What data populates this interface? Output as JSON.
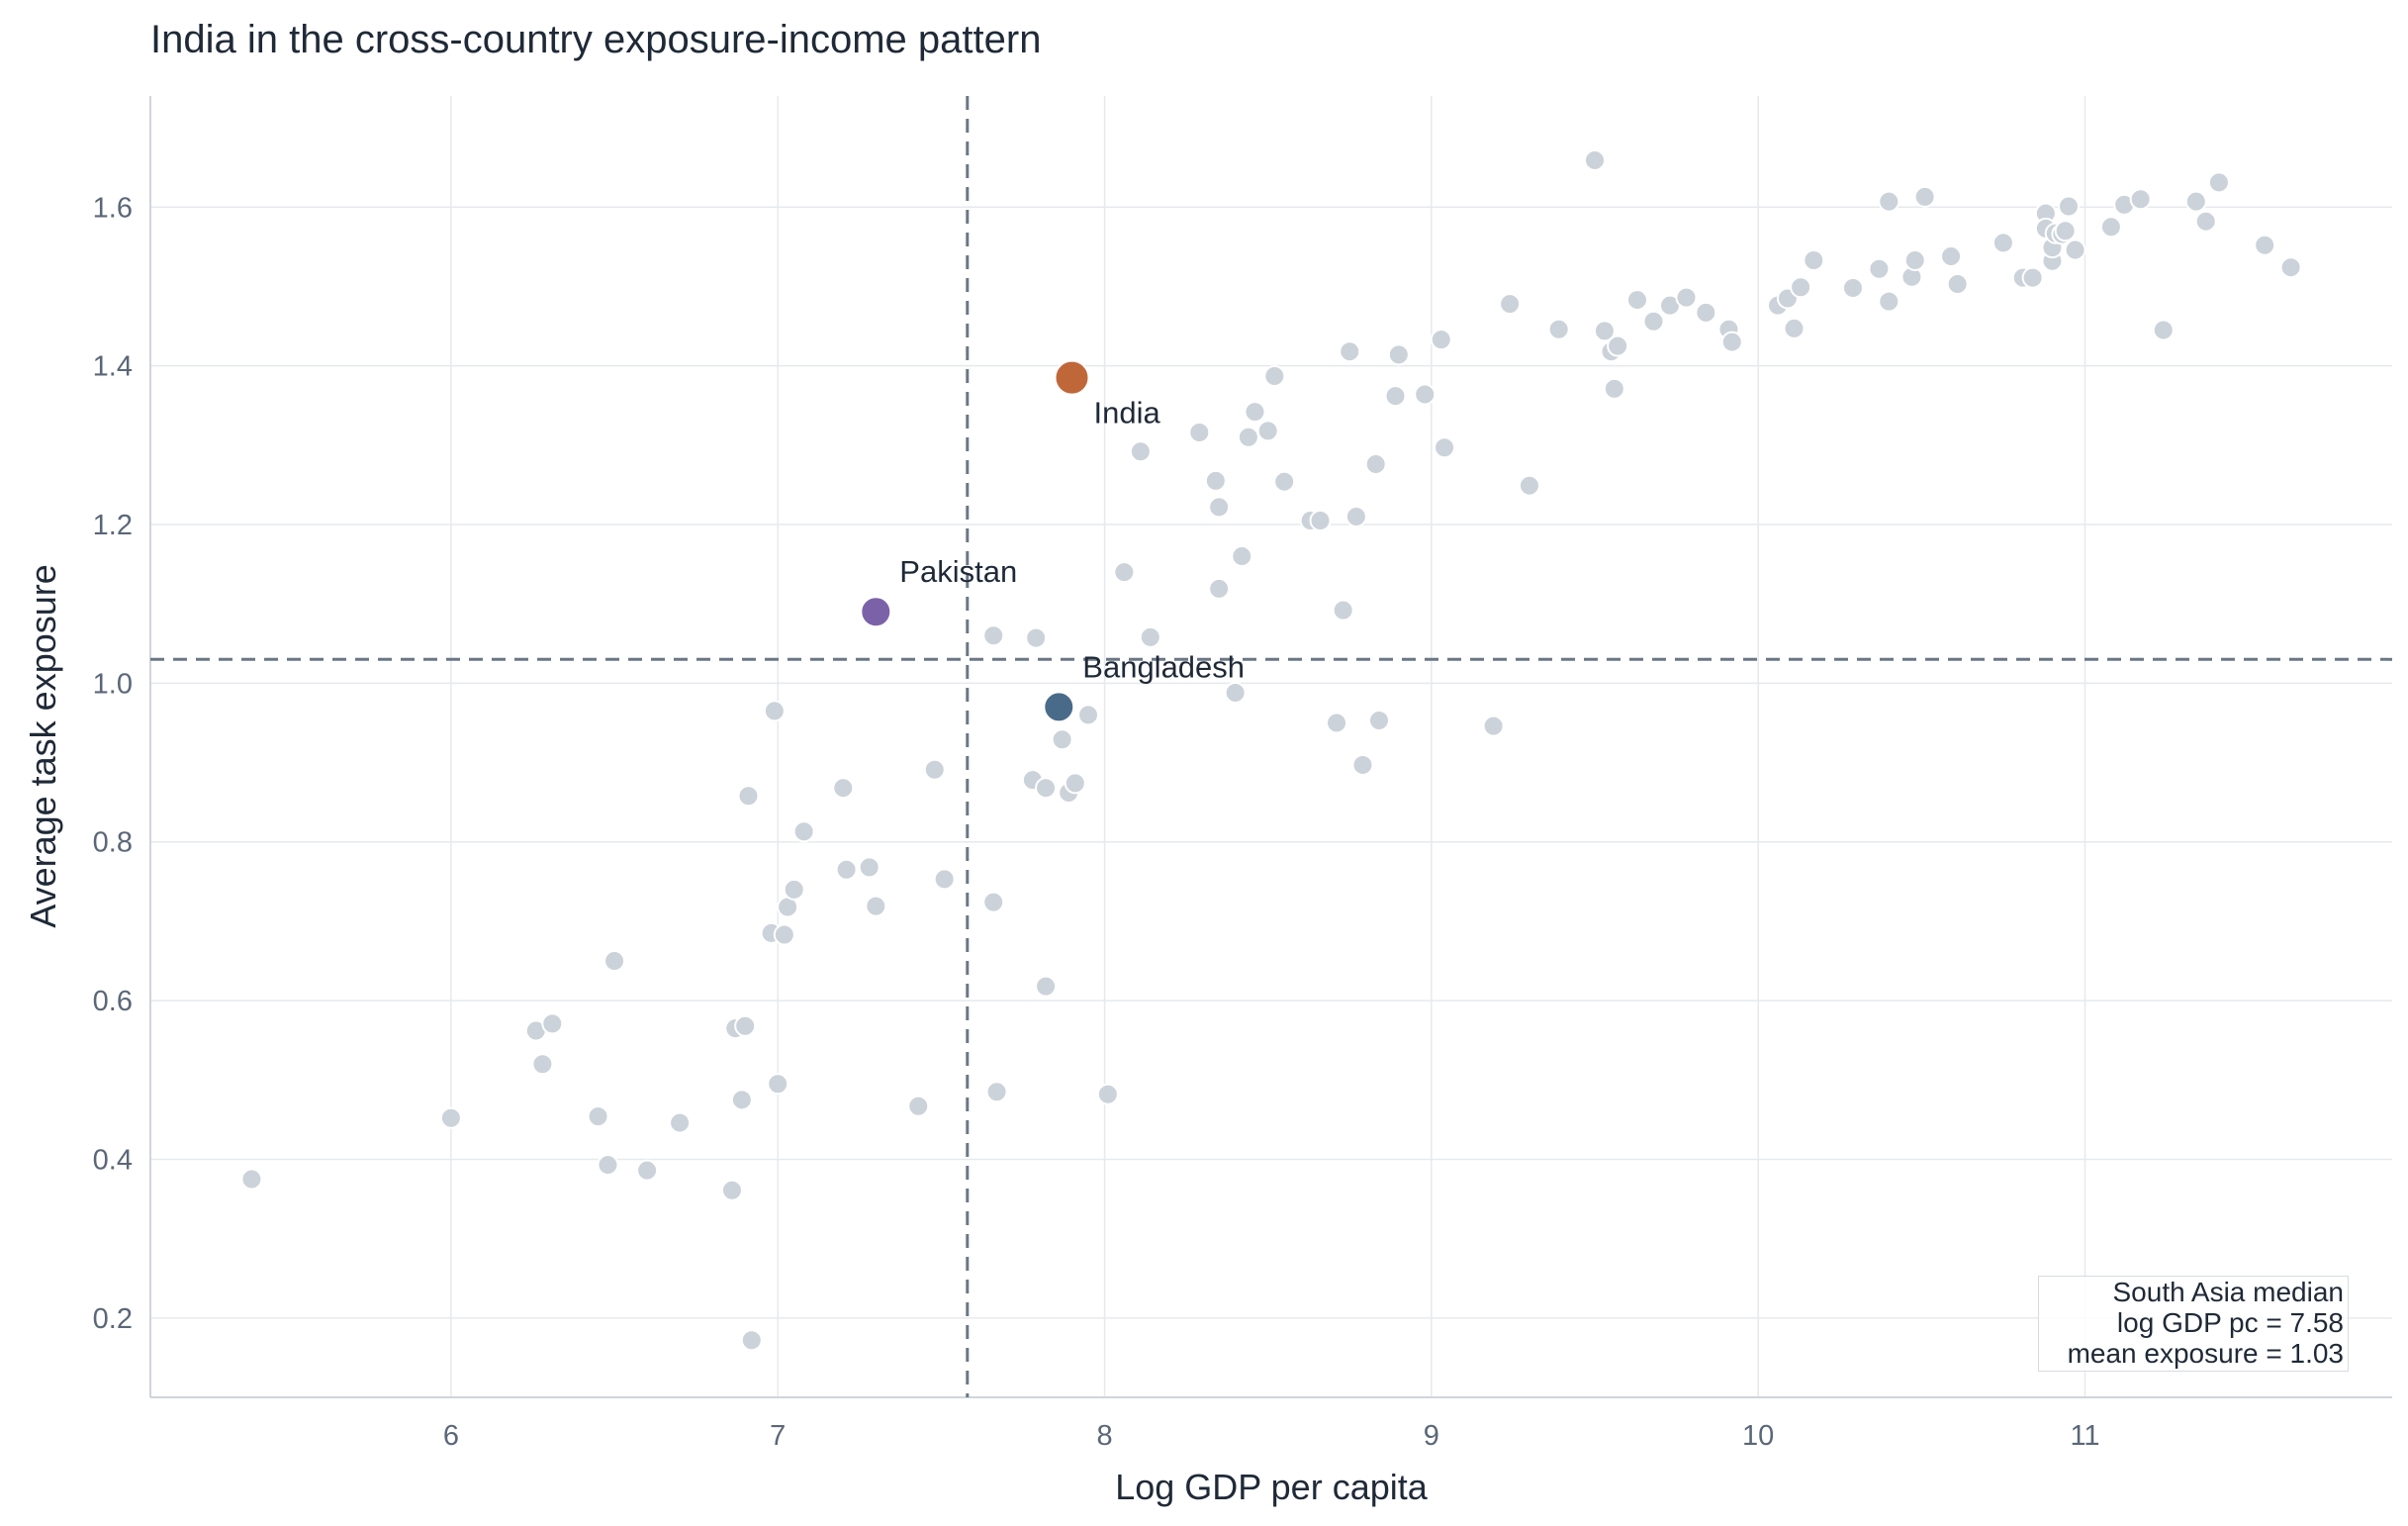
{
  "chart_data": {
    "type": "scatter",
    "title": "India in the cross-country exposure-income pattern",
    "xlabel": "Log GDP per capita",
    "ylabel": "Average task exposure",
    "xlim": [
      5.08,
      11.94
    ],
    "ylim": [
      0.1,
      1.74
    ],
    "xticks": [
      6,
      7,
      8,
      9,
      10,
      11
    ],
    "yticks": [
      0.2,
      0.4,
      0.6,
      0.8,
      1.0,
      1.2,
      1.4,
      1.6
    ],
    "grid": true,
    "colors": {
      "other": "#cbd2da",
      "India": "#c0673a",
      "Pakistan": "#7b62a8",
      "Bangladesh": "#4a6a8a",
      "reference_line": "#6b7785",
      "grid": "#e6e9ed"
    },
    "reference_lines": {
      "vertical_x": 7.58,
      "horizontal_y": 1.03
    },
    "highlighted": [
      {
        "name": "India",
        "x": 7.9,
        "y": 1.385
      },
      {
        "name": "Pakistan",
        "x": 7.3,
        "y": 1.09
      },
      {
        "name": "Bangladesh",
        "x": 7.86,
        "y": 0.97
      }
    ],
    "annotation": {
      "line1": "South Asia median",
      "line2": "log GDP pc = 7.58",
      "line3": "mean exposure = 1.03"
    },
    "points": [
      [
        5.39,
        0.375
      ],
      [
        6.0,
        0.452
      ],
      [
        6.26,
        0.562
      ],
      [
        6.28,
        0.52
      ],
      [
        6.31,
        0.571
      ],
      [
        6.45,
        0.454
      ],
      [
        6.48,
        0.393
      ],
      [
        6.5,
        0.65
      ],
      [
        6.6,
        0.386
      ],
      [
        6.7,
        0.446
      ],
      [
        6.86,
        0.361
      ],
      [
        6.87,
        0.565
      ],
      [
        6.89,
        0.475
      ],
      [
        6.9,
        0.568
      ],
      [
        6.91,
        0.858
      ],
      [
        6.92,
        0.172
      ],
      [
        6.98,
        0.685
      ],
      [
        6.99,
        0.965
      ],
      [
        7.0,
        0.495
      ],
      [
        7.02,
        0.683
      ],
      [
        7.03,
        0.718
      ],
      [
        7.05,
        0.74
      ],
      [
        7.08,
        0.813
      ],
      [
        7.2,
        0.868
      ],
      [
        7.21,
        0.765
      ],
      [
        7.28,
        0.768
      ],
      [
        7.3,
        0.719
      ],
      [
        7.43,
        0.467
      ],
      [
        7.48,
        0.891
      ],
      [
        7.51,
        0.753
      ],
      [
        7.66,
        0.724
      ],
      [
        7.66,
        1.06
      ],
      [
        7.67,
        0.485
      ],
      [
        7.78,
        0.878
      ],
      [
        7.79,
        1.057
      ],
      [
        7.82,
        0.618
      ],
      [
        7.82,
        0.868
      ],
      [
        7.87,
        0.929
      ],
      [
        7.89,
        0.862
      ],
      [
        7.91,
        0.874
      ],
      [
        7.95,
        0.96
      ],
      [
        8.01,
        0.482
      ],
      [
        8.06,
        1.14
      ],
      [
        8.11,
        1.292
      ],
      [
        8.14,
        1.058
      ],
      [
        8.29,
        1.316
      ],
      [
        8.34,
        1.255
      ],
      [
        8.35,
        1.222
      ],
      [
        8.35,
        1.119
      ],
      [
        8.4,
        0.988
      ],
      [
        8.42,
        1.16
      ],
      [
        8.44,
        1.31
      ],
      [
        8.46,
        1.342
      ],
      [
        8.5,
        1.318
      ],
      [
        8.52,
        1.387
      ],
      [
        8.55,
        1.254
      ],
      [
        8.63,
        1.205
      ],
      [
        8.66,
        1.205
      ],
      [
        8.71,
        0.95
      ],
      [
        8.73,
        1.092
      ],
      [
        8.75,
        1.418
      ],
      [
        8.77,
        1.21
      ],
      [
        8.79,
        0.897
      ],
      [
        8.83,
        1.276
      ],
      [
        8.84,
        0.953
      ],
      [
        8.89,
        1.362
      ],
      [
        8.9,
        1.414
      ],
      [
        8.98,
        1.364
      ],
      [
        9.03,
        1.433
      ],
      [
        9.04,
        1.297
      ],
      [
        9.19,
        0.946
      ],
      [
        9.24,
        1.478
      ],
      [
        9.3,
        1.249
      ],
      [
        9.39,
        1.446
      ],
      [
        9.5,
        1.659
      ],
      [
        9.53,
        1.444
      ],
      [
        9.55,
        1.418
      ],
      [
        9.56,
        1.371
      ],
      [
        9.57,
        1.425
      ],
      [
        9.63,
        1.483
      ],
      [
        9.68,
        1.456
      ],
      [
        9.73,
        1.476
      ],
      [
        9.78,
        1.486
      ],
      [
        9.84,
        1.467
      ],
      [
        9.91,
        1.446
      ],
      [
        9.92,
        1.43
      ],
      [
        10.06,
        1.476
      ],
      [
        10.09,
        1.485
      ],
      [
        10.11,
        1.447
      ],
      [
        10.13,
        1.499
      ],
      [
        10.17,
        1.533
      ],
      [
        10.29,
        1.498
      ],
      [
        10.37,
        1.522
      ],
      [
        10.4,
        1.481
      ],
      [
        10.4,
        1.607
      ],
      [
        10.47,
        1.512
      ],
      [
        10.48,
        1.533
      ],
      [
        10.51,
        1.613
      ],
      [
        10.59,
        1.538
      ],
      [
        10.61,
        1.503
      ],
      [
        10.75,
        1.555
      ],
      [
        10.81,
        1.511
      ],
      [
        10.84,
        1.511
      ],
      [
        10.88,
        1.592
      ],
      [
        10.88,
        1.573
      ],
      [
        10.9,
        1.532
      ],
      [
        10.9,
        1.549
      ],
      [
        10.91,
        1.567
      ],
      [
        10.93,
        1.566
      ],
      [
        10.94,
        1.57
      ],
      [
        10.95,
        1.601
      ],
      [
        10.97,
        1.546
      ],
      [
        11.08,
        1.575
      ],
      [
        11.12,
        1.603
      ],
      [
        11.17,
        1.61
      ],
      [
        11.24,
        1.445
      ],
      [
        11.34,
        1.607
      ],
      [
        11.37,
        1.582
      ],
      [
        11.41,
        1.631
      ],
      [
        11.55,
        1.552
      ],
      [
        11.63,
        1.524
      ]
    ]
  }
}
